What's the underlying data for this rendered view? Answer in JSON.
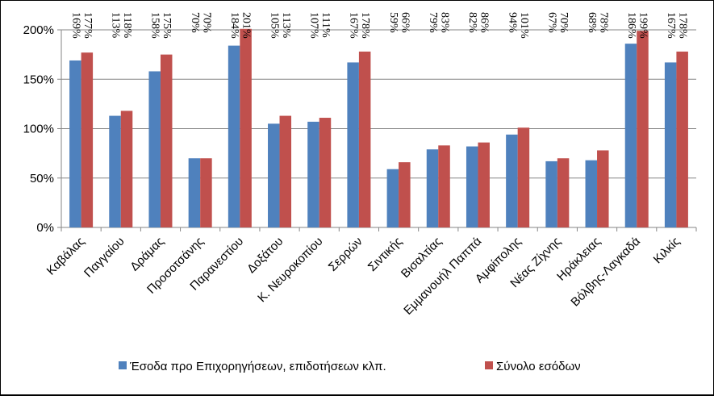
{
  "chart_data": {
    "type": "bar",
    "categories": [
      "Καβάλας",
      "Παγγαίου",
      "Δράμας",
      "Προσοτσάνης",
      "Παρανεστίου",
      "Δοξάτου",
      "Κ. Νευροκοπίου",
      "Σερρών",
      "Σιντικής",
      "Βισαλτίας",
      "Εμμανουήλ Παππά",
      "Αμφίπολης",
      "Νέας Ζίχνης",
      "Ηράκλειας",
      "Βόλβης-Λαγκαδά",
      "Κιλκίς"
    ],
    "series": [
      {
        "name": "Έσοδα προ Επιχορηγήσεων, επιδοτήσεων κλπ.",
        "color": "#4F81BD",
        "values": [
          169,
          113,
          158,
          70,
          184,
          105,
          107,
          167,
          59,
          79,
          82,
          94,
          67,
          68,
          186,
          167
        ]
      },
      {
        "name": "Σύνολο εσόδων",
        "color": "#C0504D",
        "values": [
          177,
          118,
          175,
          70,
          201,
          113,
          111,
          178,
          66,
          83,
          86,
          101,
          70,
          78,
          199,
          178
        ]
      }
    ],
    "data_labels": [
      [
        "169%",
        "113%",
        "158%",
        "70%",
        "184%",
        "105%",
        "107%",
        "167%",
        "59%",
        "79%",
        "82%",
        "94%",
        "67%",
        "68%",
        "186%",
        "167%"
      ],
      [
        "177%",
        "118%",
        "175%",
        "70%",
        "201%",
        "113%",
        "111%",
        "178%",
        "66%",
        "83%",
        "86%",
        "101%",
        "70%",
        "78%",
        "199%",
        "178%"
      ]
    ],
    "ylim": [
      0,
      200
    ],
    "yticks": [
      0,
      50,
      100,
      150,
      200
    ],
    "ytick_labels": [
      "0%",
      "50%",
      "100%",
      "150%",
      "200%"
    ],
    "grid": true,
    "legend_position": "bottom",
    "title": "",
    "xlabel": "",
    "ylabel": ""
  }
}
